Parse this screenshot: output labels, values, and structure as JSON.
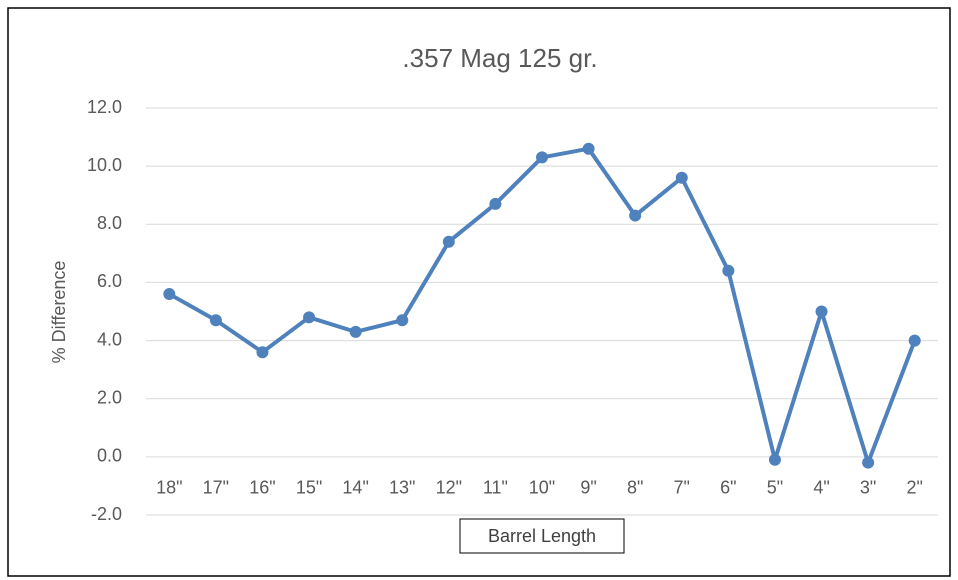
{
  "chart_data": {
    "type": "line",
    "title": ".357 Mag 125 gr.",
    "x_label": "Barrel Length",
    "y_label": "% Difference",
    "categories": [
      "18\"",
      "17\"",
      "16\"",
      "15\"",
      "14\"",
      "13\"",
      "12\"",
      "11\"",
      "10\"",
      "9\"",
      "8\"",
      "7\"",
      "6\"",
      "5\"",
      "4\"",
      "3\"",
      "2\""
    ],
    "series": [
      {
        "name": "% Difference",
        "color": "#4f81bd",
        "values": [
          5.6,
          4.7,
          3.6,
          4.8,
          4.3,
          4.7,
          7.4,
          8.7,
          10.3,
          10.6,
          8.3,
          9.6,
          6.4,
          -0.1,
          5.0,
          -0.2,
          4.0
        ]
      }
    ],
    "ylim": [
      -2,
      12
    ],
    "yticks": [
      {
        "value": -2,
        "label": "-2.0"
      },
      {
        "value": 0,
        "label": "0.0"
      },
      {
        "value": 2,
        "label": "2.0"
      },
      {
        "value": 4,
        "label": "4.0"
      },
      {
        "value": 6,
        "label": "6.0"
      },
      {
        "value": 8,
        "label": "8.0"
      },
      {
        "value": 10,
        "label": "10.0"
      },
      {
        "value": 12,
        "label": "12.0"
      }
    ],
    "grid": true
  }
}
